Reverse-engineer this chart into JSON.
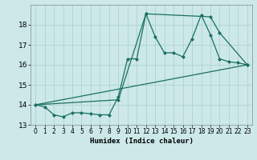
{
  "xlabel": "Humidex (Indice chaleur)",
  "ylabel": "",
  "xlim": [
    -0.5,
    23.5
  ],
  "ylim": [
    13,
    19
  ],
  "yticks": [
    13,
    14,
    15,
    16,
    17,
    18
  ],
  "xticks": [
    0,
    1,
    2,
    3,
    4,
    5,
    6,
    7,
    8,
    9,
    10,
    11,
    12,
    13,
    14,
    15,
    16,
    17,
    18,
    19,
    20,
    21,
    22,
    23
  ],
  "bg_color": "#cce8e8",
  "line_color": "#1a7060",
  "grid_color": "#aacece",
  "series1": {
    "x": [
      0,
      1,
      2,
      3,
      4,
      5,
      6,
      7,
      8,
      9,
      10,
      11,
      12,
      13,
      14,
      15,
      16,
      17,
      18,
      19,
      20,
      21,
      22,
      23
    ],
    "y": [
      14.0,
      13.9,
      13.5,
      13.4,
      13.6,
      13.6,
      13.55,
      13.5,
      13.5,
      14.4,
      16.3,
      16.3,
      18.55,
      17.4,
      16.6,
      16.6,
      16.4,
      17.3,
      18.5,
      17.5,
      16.3,
      16.15,
      16.1,
      16.0
    ]
  },
  "series2": {
    "x": [
      0,
      9,
      12,
      19,
      20,
      23
    ],
    "y": [
      14.0,
      14.25,
      18.55,
      18.4,
      17.6,
      16.0
    ]
  },
  "series3": {
    "x": [
      0,
      23
    ],
    "y": [
      14.0,
      16.0
    ]
  }
}
